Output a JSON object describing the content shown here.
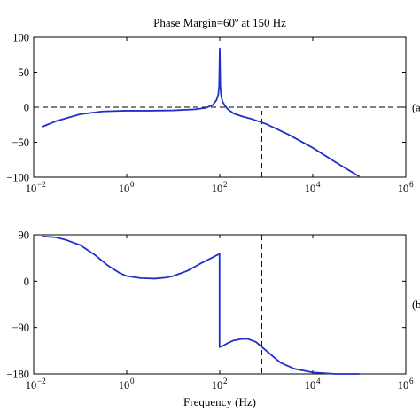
{
  "chart_data": [
    {
      "type": "line",
      "title": "Phase Margin=60º at 150 Hz",
      "panel_label": "(a",
      "x_scale": "log",
      "xlim": [
        0.01,
        1000000
      ],
      "ylim": [
        -100,
        100
      ],
      "xticks": [
        {
          "value": 0.01,
          "base": "10",
          "exp": "−2"
        },
        {
          "value": 1,
          "base": "10",
          "exp": "0"
        },
        {
          "value": 100,
          "base": "10",
          "exp": "2"
        },
        {
          "value": 10000,
          "base": "10",
          "exp": "4"
        },
        {
          "value": 1000000,
          "base": "10",
          "exp": "6"
        }
      ],
      "yticks": [
        {
          "value": 100,
          "label": "100"
        },
        {
          "value": 50,
          "label": "50"
        },
        {
          "value": 0,
          "label": "0"
        },
        {
          "value": -50,
          "label": "−50"
        },
        {
          "value": -100,
          "label": "−100"
        }
      ],
      "series": [
        {
          "color": "#1f2fc8",
          "x": [
            0.015,
            0.03,
            0.1,
            0.3,
            1,
            3,
            10,
            30,
            50,
            70,
            85,
            93,
            97,
            100,
            103,
            108,
            115,
            130,
            150,
            200,
            300,
            500,
            1000,
            3000,
            10000,
            30000,
            100000
          ],
          "y": [
            -28,
            -20,
            -10,
            -6,
            -5,
            -5,
            -4.5,
            -3,
            -1,
            3,
            10,
            18,
            30,
            84,
            30,
            15,
            8,
            2,
            -3,
            -9,
            -13,
            -17,
            -24,
            -39,
            -58,
            -78,
            -99
          ]
        }
      ],
      "reference_lines": [
        {
          "axis": "y",
          "value": 0,
          "style": "dashed"
        },
        {
          "axis": "x",
          "value": 800,
          "from": -100,
          "to": -5,
          "style": "dashed"
        }
      ]
    },
    {
      "type": "line",
      "panel_label": "(b",
      "xlabel": "Frequency (Hz)",
      "x_scale": "log",
      "xlim": [
        0.01,
        1000000
      ],
      "ylim": [
        -180,
        90
      ],
      "xticks": [
        {
          "value": 0.01,
          "base": "10",
          "exp": "−2"
        },
        {
          "value": 1,
          "base": "10",
          "exp": "0"
        },
        {
          "value": 100,
          "base": "10",
          "exp": "2"
        },
        {
          "value": 10000,
          "base": "10",
          "exp": "4"
        },
        {
          "value": 1000000,
          "base": "10",
          "exp": "6"
        }
      ],
      "yticks": [
        {
          "value": 90,
          "label": "90"
        },
        {
          "value": 0,
          "label": "0"
        },
        {
          "value": -90,
          "label": "−90"
        },
        {
          "value": -180,
          "label": "−180"
        }
      ],
      "series": [
        {
          "color": "#1f2fc8",
          "x": [
            0.015,
            0.03,
            0.05,
            0.1,
            0.2,
            0.4,
            0.7,
            1,
            2,
            4,
            7,
            10,
            20,
            40,
            70,
            99,
            99.01,
            120,
            150,
            200,
            300,
            400,
            600,
            1000,
            2000,
            4000,
            10000,
            30000,
            100000
          ],
          "y": [
            87,
            85,
            80,
            70,
            52,
            30,
            16,
            10,
            6,
            5,
            7,
            10,
            20,
            35,
            46,
            53,
            -128,
            -125,
            -120,
            -115,
            -112,
            -112,
            -118,
            -135,
            -158,
            -170,
            -177,
            -180,
            -180
          ]
        }
      ],
      "reference_lines": [
        {
          "axis": "x",
          "value": 800,
          "from": 90,
          "to": -180,
          "style": "dashed"
        }
      ]
    }
  ]
}
